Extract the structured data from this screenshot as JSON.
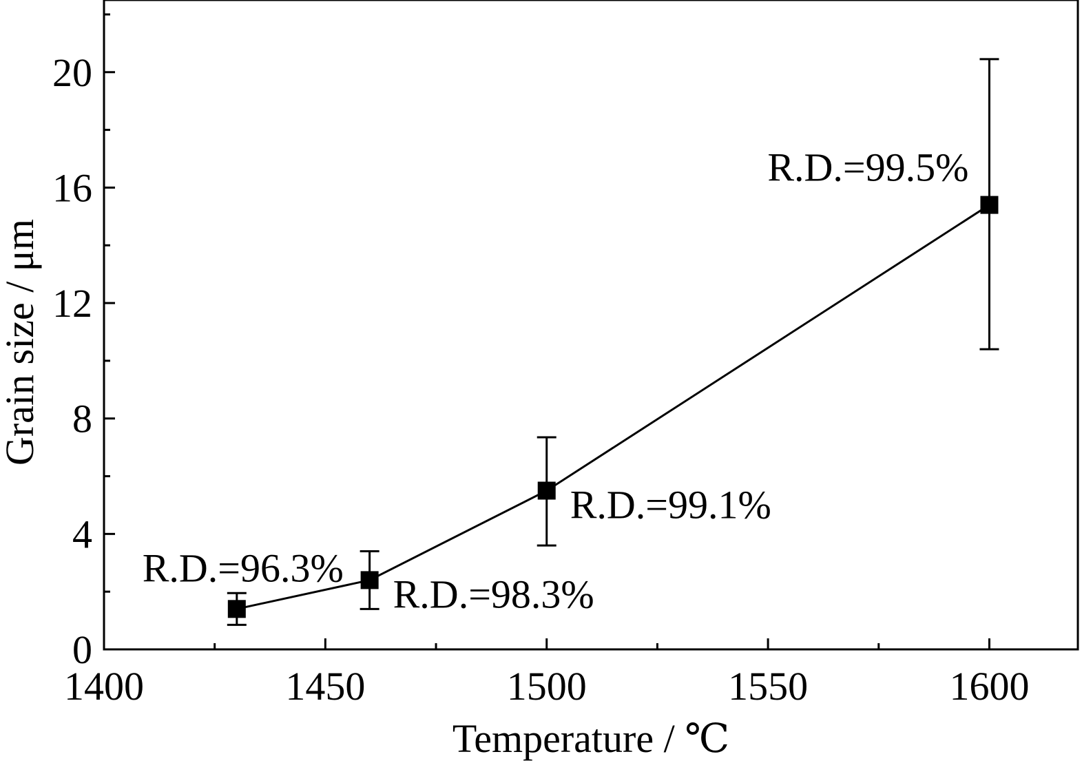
{
  "chart_data": {
    "type": "line",
    "title": "",
    "xlabel": "Temperature / ℃",
    "ylabel": "Grain size / μm",
    "xlim": [
      1400,
      1620
    ],
    "ylim": [
      0,
      22.5
    ],
    "x_ticks": [
      1400,
      1450,
      1500,
      1550,
      1600
    ],
    "x_minor_ticks": [
      1425,
      1475,
      1525,
      1575
    ],
    "y_ticks": [
      0,
      4,
      8,
      12,
      16,
      20
    ],
    "y_minor_ticks": [
      2,
      6,
      10,
      14,
      18,
      22
    ],
    "grid": false,
    "legend": "none",
    "series": [
      {
        "x": [
          1430,
          1460,
          1500,
          1600
        ],
        "y": [
          1.4,
          2.4,
          5.5,
          15.4
        ],
        "error_low": [
          0.55,
          1.0,
          1.9,
          5.0
        ],
        "error_high": [
          0.55,
          1.0,
          1.85,
          5.05
        ],
        "marker": "square",
        "color": "#000000"
      }
    ],
    "annotations": [
      {
        "text": "R.D.=96.3%",
        "x": 1430,
        "y": 1.4,
        "placement": "above-left"
      },
      {
        "text": "R.D.=98.3%",
        "x": 1460,
        "y": 2.4,
        "placement": "right-below"
      },
      {
        "text": "R.D.=99.1%",
        "x": 1500,
        "y": 5.5,
        "placement": "right-below"
      },
      {
        "text": "R.D.=99.5%",
        "x": 1600,
        "y": 15.4,
        "placement": "above-left"
      }
    ]
  }
}
